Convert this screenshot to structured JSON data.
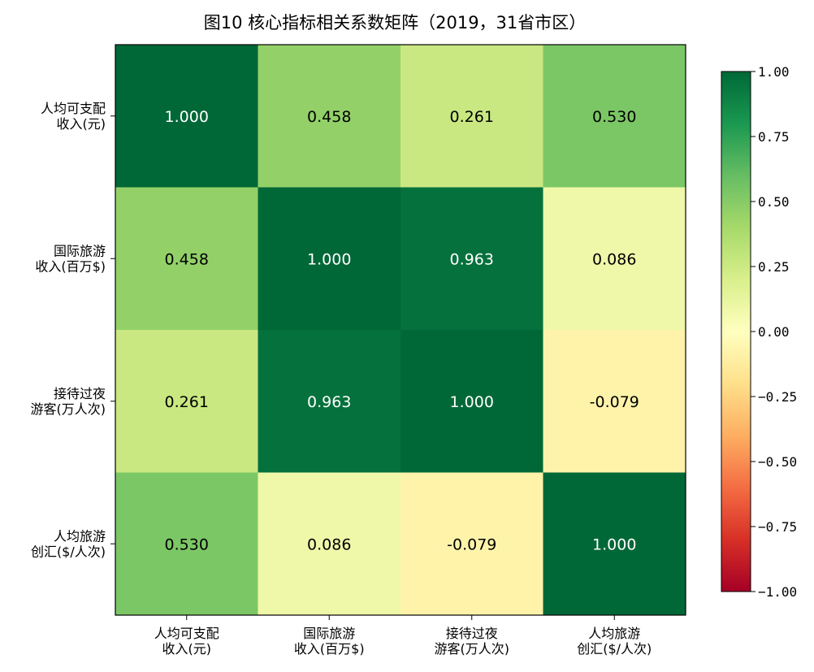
{
  "chart_data": {
    "type": "heatmap",
    "title": "图10  核心指标相关系数矩阵（2019，31省市区）",
    "xlabel": "",
    "ylabel": "",
    "row_labels": [
      [
        "人均可支配",
        "收入(元)"
      ],
      [
        "国际旅游",
        "收入(百万$)"
      ],
      [
        "接待过夜",
        "游客(万人次)"
      ],
      [
        "人均旅游",
        "创汇($/人次)"
      ]
    ],
    "col_labels": [
      [
        "人均可支配",
        "收入(元)"
      ],
      [
        "国际旅游",
        "收入(百万$)"
      ],
      [
        "接待过夜",
        "游客(万人次)"
      ],
      [
        "人均旅游",
        "创汇($/人次)"
      ]
    ],
    "values": [
      [
        1.0,
        0.458,
        0.261,
        0.53
      ],
      [
        0.458,
        1.0,
        0.963,
        0.086
      ],
      [
        0.261,
        0.963,
        1.0,
        -0.079
      ],
      [
        0.53,
        0.086,
        -0.079,
        1.0
      ]
    ],
    "value_labels": [
      [
        "1.000",
        "0.458",
        "0.261",
        "0.530"
      ],
      [
        "0.458",
        "1.000",
        "0.963",
        "0.086"
      ],
      [
        "0.261",
        "0.963",
        "1.000",
        "-0.079"
      ],
      [
        "0.530",
        "0.086",
        "-0.079",
        "1.000"
      ]
    ],
    "vlim": [
      -1.0,
      1.0
    ],
    "colormap": "RdYlGn",
    "colorbar_ticks": [
      1.0,
      0.75,
      0.5,
      0.25,
      0.0,
      -0.25,
      -0.5,
      -0.75,
      -1.0
    ],
    "colorbar_tick_labels": [
      "1.00",
      "0.75",
      "0.50",
      "0.25",
      "0.00",
      "−0.25",
      "−0.50",
      "−0.75",
      "−1.00"
    ],
    "colorbar_position": "right",
    "grid": false
  }
}
